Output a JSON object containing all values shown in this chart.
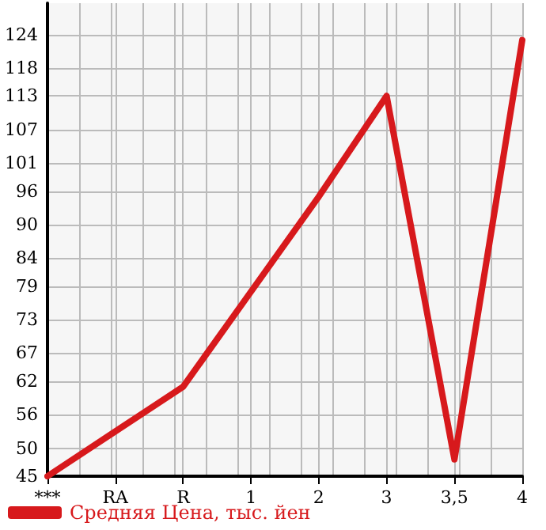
{
  "chart_data": {
    "type": "line",
    "categories": [
      "***",
      "RA",
      "R",
      "1",
      "2",
      "3",
      "3,5",
      "4"
    ],
    "series": [
      {
        "name": "Средняя Цена, тыс. йен",
        "color": "#d7191c",
        "values": [
          45,
          53,
          61,
          78,
          95,
          113,
          48,
          123
        ]
      }
    ],
    "ylim": [
      45,
      129.6
    ],
    "yticks": [
      45,
      50,
      56,
      62,
      67,
      73,
      79,
      84,
      90,
      96,
      101,
      107,
      113,
      118,
      124
    ],
    "grid": true,
    "legend": "bottom left",
    "marker": "none",
    "line_style": "solid"
  }
}
